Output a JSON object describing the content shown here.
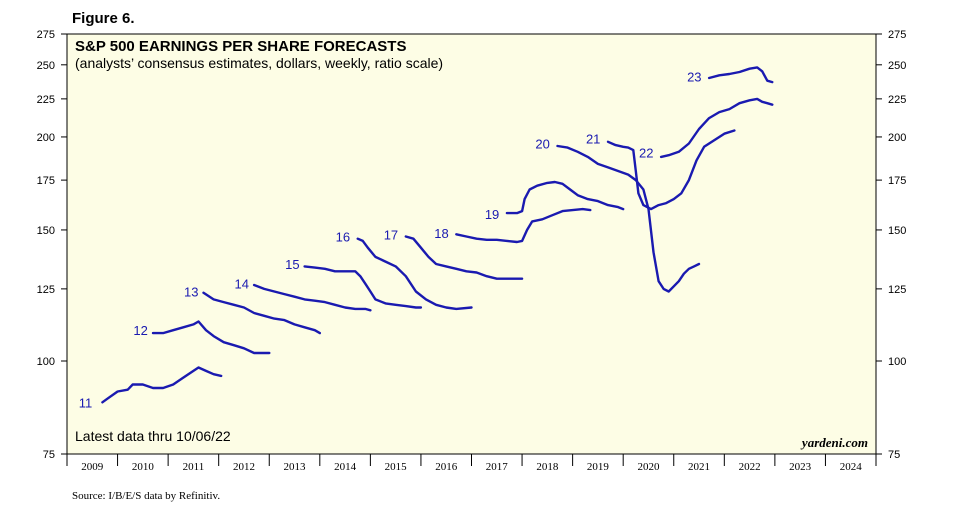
{
  "figure_label": "Figure 6.",
  "source": "Source: I/B/E/S data by Refinitiv.",
  "colors": {
    "plot_background": "#fdfde5",
    "line": "#1a1ab0",
    "frame": "#000000"
  },
  "chart_data": {
    "type": "line",
    "scale": "log",
    "title": "S&P 500 EARNINGS PER SHARE FORECASTS",
    "subtitle": "(analysts’ consensus estimates, dollars, weekly, ratio scale)",
    "annotation": "Latest data thru  10/06/22",
    "brand": "yardeni.com",
    "ylim": [
      75,
      275
    ],
    "xlim": [
      2009,
      2025
    ],
    "yticks": [
      75,
      100,
      125,
      150,
      175,
      200,
      225,
      250,
      275
    ],
    "x_tick_labels": [
      "2009",
      "2010",
      "2011",
      "2012",
      "2013",
      "2014",
      "2015",
      "2016",
      "2017",
      "2018",
      "2019",
      "2020",
      "2021",
      "2022",
      "2023",
      "2024"
    ],
    "series": [
      {
        "name": "11",
        "points": [
          [
            2009.7,
            88
          ],
          [
            2009.8,
            89
          ],
          [
            2010.0,
            91
          ],
          [
            2010.2,
            91.5
          ],
          [
            2010.3,
            93
          ],
          [
            2010.5,
            93
          ],
          [
            2010.7,
            92
          ],
          [
            2010.9,
            92
          ],
          [
            2011.1,
            93
          ],
          [
            2011.3,
            95
          ],
          [
            2011.5,
            97
          ],
          [
            2011.6,
            98
          ],
          [
            2011.75,
            97
          ],
          [
            2011.9,
            96
          ],
          [
            2012.05,
            95.5
          ]
        ]
      },
      {
        "name": "12",
        "points": [
          [
            2010.7,
            109
          ],
          [
            2010.9,
            109
          ],
          [
            2011.1,
            110
          ],
          [
            2011.3,
            111
          ],
          [
            2011.5,
            112
          ],
          [
            2011.6,
            113
          ],
          [
            2011.75,
            110
          ],
          [
            2011.9,
            108
          ],
          [
            2012.1,
            106
          ],
          [
            2012.3,
            105
          ],
          [
            2012.5,
            104
          ],
          [
            2012.7,
            102.5
          ],
          [
            2013.0,
            102.5
          ]
        ]
      },
      {
        "name": "13",
        "points": [
          [
            2011.7,
            123.5
          ],
          [
            2011.9,
            121
          ],
          [
            2012.1,
            120
          ],
          [
            2012.3,
            119
          ],
          [
            2012.5,
            118
          ],
          [
            2012.7,
            116
          ],
          [
            2012.9,
            115
          ],
          [
            2013.1,
            114
          ],
          [
            2013.3,
            113.5
          ],
          [
            2013.5,
            112
          ],
          [
            2013.7,
            111
          ],
          [
            2013.9,
            110
          ],
          [
            2014.0,
            109
          ]
        ]
      },
      {
        "name": "14",
        "points": [
          [
            2012.7,
            126.5
          ],
          [
            2012.9,
            125
          ],
          [
            2013.1,
            124
          ],
          [
            2013.3,
            123
          ],
          [
            2013.5,
            122
          ],
          [
            2013.7,
            121
          ],
          [
            2013.9,
            120.5
          ],
          [
            2014.1,
            120
          ],
          [
            2014.3,
            119
          ],
          [
            2014.5,
            118
          ],
          [
            2014.7,
            117.5
          ],
          [
            2014.9,
            117.5
          ],
          [
            2015.0,
            117
          ]
        ]
      },
      {
        "name": "15",
        "points": [
          [
            2013.7,
            134
          ],
          [
            2013.9,
            133.5
          ],
          [
            2014.1,
            133
          ],
          [
            2014.3,
            132
          ],
          [
            2014.5,
            132
          ],
          [
            2014.7,
            132
          ],
          [
            2014.8,
            130
          ],
          [
            2014.9,
            127
          ],
          [
            2015.0,
            124
          ],
          [
            2015.1,
            121
          ],
          [
            2015.3,
            119.5
          ],
          [
            2015.5,
            119
          ],
          [
            2015.7,
            118.5
          ],
          [
            2015.9,
            118
          ],
          [
            2016.0,
            118
          ]
        ]
      },
      {
        "name": "16",
        "points": [
          [
            2014.75,
            146
          ],
          [
            2014.85,
            145
          ],
          [
            2014.95,
            142
          ],
          [
            2015.1,
            138
          ],
          [
            2015.3,
            136
          ],
          [
            2015.5,
            134
          ],
          [
            2015.7,
            130
          ],
          [
            2015.9,
            124
          ],
          [
            2016.1,
            121
          ],
          [
            2016.3,
            119
          ],
          [
            2016.5,
            118
          ],
          [
            2016.7,
            117.5
          ],
          [
            2017.0,
            118
          ]
        ]
      },
      {
        "name": "17",
        "points": [
          [
            2015.7,
            147
          ],
          [
            2015.85,
            146
          ],
          [
            2016.0,
            142
          ],
          [
            2016.15,
            138
          ],
          [
            2016.3,
            135
          ],
          [
            2016.5,
            134
          ],
          [
            2016.7,
            133
          ],
          [
            2016.9,
            132
          ],
          [
            2017.1,
            131.5
          ],
          [
            2017.3,
            130
          ],
          [
            2017.5,
            129
          ],
          [
            2017.7,
            129
          ],
          [
            2018.0,
            129
          ]
        ]
      },
      {
        "name": "18",
        "points": [
          [
            2016.7,
            148
          ],
          [
            2016.9,
            147
          ],
          [
            2017.1,
            146
          ],
          [
            2017.3,
            145.5
          ],
          [
            2017.5,
            145.5
          ],
          [
            2017.7,
            145
          ],
          [
            2017.9,
            144.5
          ],
          [
            2018.0,
            145
          ],
          [
            2018.1,
            150
          ],
          [
            2018.2,
            154
          ],
          [
            2018.4,
            155
          ],
          [
            2018.6,
            157
          ],
          [
            2018.8,
            159
          ],
          [
            2019.0,
            159.5
          ],
          [
            2019.2,
            160
          ],
          [
            2019.35,
            159.5
          ]
        ]
      },
      {
        "name": "19",
        "points": [
          [
            2017.7,
            158
          ],
          [
            2017.9,
            158
          ],
          [
            2018.0,
            159
          ],
          [
            2018.05,
            165
          ],
          [
            2018.15,
            170
          ],
          [
            2018.3,
            172
          ],
          [
            2018.5,
            173.5
          ],
          [
            2018.65,
            174
          ],
          [
            2018.8,
            173
          ],
          [
            2018.95,
            170
          ],
          [
            2019.1,
            167
          ],
          [
            2019.3,
            165
          ],
          [
            2019.5,
            164
          ],
          [
            2019.7,
            162
          ],
          [
            2019.9,
            161
          ],
          [
            2020.0,
            160
          ]
        ]
      },
      {
        "name": "20",
        "points": [
          [
            2018.7,
            194.5
          ],
          [
            2018.9,
            193.5
          ],
          [
            2019.1,
            191
          ],
          [
            2019.3,
            188
          ],
          [
            2019.5,
            184
          ],
          [
            2019.7,
            182
          ],
          [
            2019.9,
            180
          ],
          [
            2020.1,
            178
          ],
          [
            2020.25,
            175
          ],
          [
            2020.4,
            170
          ],
          [
            2020.5,
            160
          ],
          [
            2020.6,
            140
          ],
          [
            2020.7,
            128
          ],
          [
            2020.8,
            125
          ],
          [
            2020.9,
            124
          ],
          [
            2021.0,
            126
          ],
          [
            2021.1,
            128
          ],
          [
            2021.2,
            131
          ],
          [
            2021.3,
            133
          ],
          [
            2021.4,
            134
          ],
          [
            2021.5,
            135
          ]
        ]
      },
      {
        "name": "21",
        "points": [
          [
            2019.7,
            197
          ],
          [
            2019.85,
            195
          ],
          [
            2020.0,
            194
          ],
          [
            2020.1,
            193.5
          ],
          [
            2020.2,
            192
          ],
          [
            2020.25,
            180
          ],
          [
            2020.3,
            168
          ],
          [
            2020.4,
            162
          ],
          [
            2020.55,
            160
          ],
          [
            2020.7,
            162
          ],
          [
            2020.85,
            163
          ],
          [
            2021.0,
            165
          ],
          [
            2021.15,
            168
          ],
          [
            2021.3,
            175
          ],
          [
            2021.45,
            186
          ],
          [
            2021.6,
            194
          ],
          [
            2021.8,
            198
          ],
          [
            2022.0,
            202
          ],
          [
            2022.2,
            204
          ]
        ]
      },
      {
        "name": "22",
        "points": [
          [
            2020.75,
            188
          ],
          [
            2020.9,
            189
          ],
          [
            2021.1,
            191
          ],
          [
            2021.3,
            196
          ],
          [
            2021.5,
            205
          ],
          [
            2021.7,
            212
          ],
          [
            2021.9,
            216
          ],
          [
            2022.1,
            218
          ],
          [
            2022.3,
            222
          ],
          [
            2022.5,
            224
          ],
          [
            2022.65,
            225
          ],
          [
            2022.75,
            223
          ],
          [
            2022.85,
            222
          ],
          [
            2022.95,
            221
          ]
        ]
      },
      {
        "name": "23",
        "points": [
          [
            2021.7,
            240
          ],
          [
            2021.9,
            242
          ],
          [
            2022.1,
            243
          ],
          [
            2022.3,
            244.5
          ],
          [
            2022.5,
            247
          ],
          [
            2022.65,
            248
          ],
          [
            2022.75,
            245
          ],
          [
            2022.85,
            238
          ],
          [
            2022.95,
            237
          ]
        ]
      }
    ],
    "series_label_positions": [
      [
        2009.5,
        88
      ],
      [
        2010.6,
        110
      ],
      [
        2011.6,
        124
      ],
      [
        2012.6,
        127
      ],
      [
        2013.6,
        135
      ],
      [
        2014.6,
        147
      ],
      [
        2015.55,
        148
      ],
      [
        2016.55,
        148.5
      ],
      [
        2017.55,
        157.5
      ],
      [
        2018.55,
        196
      ],
      [
        2019.55,
        199
      ],
      [
        2020.6,
        190.5
      ],
      [
        2021.55,
        241
      ]
    ]
  }
}
